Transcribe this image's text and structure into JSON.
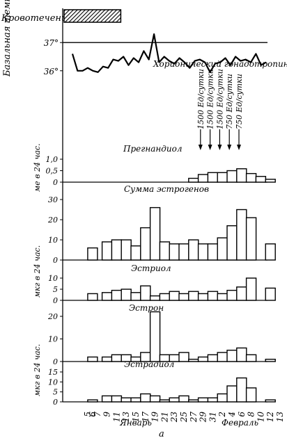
{
  "labels": {
    "bleeding": "Кровотечение",
    "basal_temp": "Базальная температура",
    "hcg": "Хорионический гонадотропин",
    "pregnanediol": "Прегнандиол",
    "estrogens_sum": "Сумма эстрогенов",
    "estriol": "Эстриол",
    "estrone": "Эстрон",
    "estradiol": "Эстрадиол",
    "unit_me": "ме в 24 час.",
    "unit_mkg": "мкг в 24 час.",
    "month_jan": "Январь",
    "month_feb": "Февраль",
    "figure_letter": "а"
  },
  "chart_data": [
    {
      "type": "line",
      "panel": "basal-temperature",
      "ylabel": "Базальная температура",
      "yticks": [
        "37°",
        "36°"
      ],
      "ylim": [
        35.6,
        37.4
      ],
      "reference_line": 37,
      "x": [
        5,
        6,
        7,
        8,
        9,
        10,
        11,
        12,
        13,
        14,
        15,
        16,
        17,
        18,
        19,
        20,
        21,
        22,
        23,
        24,
        25,
        26,
        27,
        28,
        29,
        30,
        31,
        32,
        33,
        34,
        35,
        36,
        37,
        38,
        39,
        40,
        41,
        42,
        43
      ],
      "values": [
        36.6,
        36.0,
        36.0,
        36.1,
        36.0,
        35.95,
        36.15,
        36.1,
        36.4,
        36.35,
        36.5,
        36.2,
        36.45,
        36.3,
        36.7,
        36.4,
        37.3,
        36.3,
        36.5,
        36.35,
        36.25,
        36.45,
        36.3,
        36.1,
        36.35,
        36.4,
        36.3,
        35.95,
        36.25,
        36.3,
        36.45,
        36.2,
        36.5,
        36.35,
        36.4,
        36.3,
        36.6,
        36.2,
        36.3
      ]
    },
    {
      "type": "bar",
      "panel": "pregnanediol",
      "title": "Прегнандиол",
      "ylabel": "ме в 24 час.",
      "yticks": [
        "1,0",
        "0,5",
        "0"
      ],
      "ylim": [
        0,
        1.2
      ],
      "x": [
        27,
        29,
        31,
        33,
        35,
        37,
        39,
        41,
        43
      ],
      "values": [
        0.2,
        0.4,
        0.5,
        0.5,
        0.6,
        0.7,
        0.45,
        0.3,
        0.15
      ]
    },
    {
      "type": "bar",
      "panel": "estrogens-sum",
      "title": "Сумма эстрогенов",
      "ylim": [
        0,
        30
      ],
      "yticks": [
        "30",
        "20",
        "10",
        "0"
      ],
      "x": [
        6,
        9,
        11,
        13,
        15,
        17,
        19,
        21,
        23,
        25,
        27,
        29,
        31,
        33,
        35,
        37,
        39,
        43
      ],
      "values": [
        6,
        9,
        10,
        10,
        7,
        16,
        26,
        9,
        8,
        8,
        10,
        8,
        8,
        11,
        17,
        25,
        21,
        8
      ]
    },
    {
      "type": "bar",
      "panel": "estriol",
      "title": "Эстриол",
      "ylim": [
        0,
        10
      ],
      "yticks": [
        "10",
        "5",
        "0"
      ],
      "x": [
        6,
        9,
        11,
        13,
        15,
        17,
        19,
        21,
        23,
        25,
        27,
        29,
        31,
        33,
        35,
        37,
        39,
        43
      ],
      "values": [
        3,
        3.5,
        4.5,
        5,
        3.5,
        6.5,
        2,
        3,
        4,
        3,
        4,
        3,
        4,
        3,
        4.5,
        6,
        10,
        5.5
      ]
    },
    {
      "type": "bar",
      "panel": "estrone",
      "title": "Эстрон",
      "ylim": [
        0,
        20
      ],
      "yticks": [
        "20",
        "10",
        "0"
      ],
      "x": [
        6,
        9,
        11,
        13,
        15,
        17,
        19,
        21,
        23,
        25,
        27,
        29,
        31,
        33,
        35,
        37,
        39,
        43
      ],
      "values": [
        2,
        2,
        3,
        3,
        2,
        4,
        22,
        3,
        3,
        4,
        1,
        2,
        3,
        4,
        5,
        6,
        3,
        1
      ]
    },
    {
      "type": "bar",
      "panel": "estradiol",
      "title": "Эстрадиол",
      "ylim": [
        0,
        15
      ],
      "yticks": [
        "15",
        "10",
        "5",
        "0"
      ],
      "x": [
        6,
        9,
        11,
        13,
        15,
        17,
        19,
        21,
        23,
        25,
        27,
        29,
        31,
        33,
        35,
        37,
        39,
        43
      ],
      "values": [
        1,
        3,
        3,
        2,
        2,
        4,
        3,
        1,
        2,
        3,
        1,
        2,
        2,
        4,
        8,
        12,
        7,
        1
      ]
    }
  ],
  "x_axis": {
    "tick_labels": [
      "5",
      "6",
      "7",
      "9",
      "11",
      "13",
      "15",
      "17",
      "19",
      "21",
      "23",
      "25",
      "27",
      "29",
      "31",
      "2",
      "4",
      "6",
      "8",
      "10",
      "12",
      "13"
    ],
    "tick_days": [
      5,
      6,
      7,
      9,
      11,
      13,
      15,
      17,
      19,
      21,
      23,
      25,
      27,
      29,
      31,
      33,
      35,
      37,
      39,
      41,
      43,
      45
    ]
  },
  "hcg_doses": [
    "1500 Ед/сутки",
    "1500 Ед/сутки",
    "1500 Ед/сутки",
    "750 Ед/сутки",
    "750 Ед/сутки"
  ],
  "bleeding_days": [
    5,
    11
  ],
  "arrow_days": [
    27,
    29,
    31,
    33,
    35
  ]
}
